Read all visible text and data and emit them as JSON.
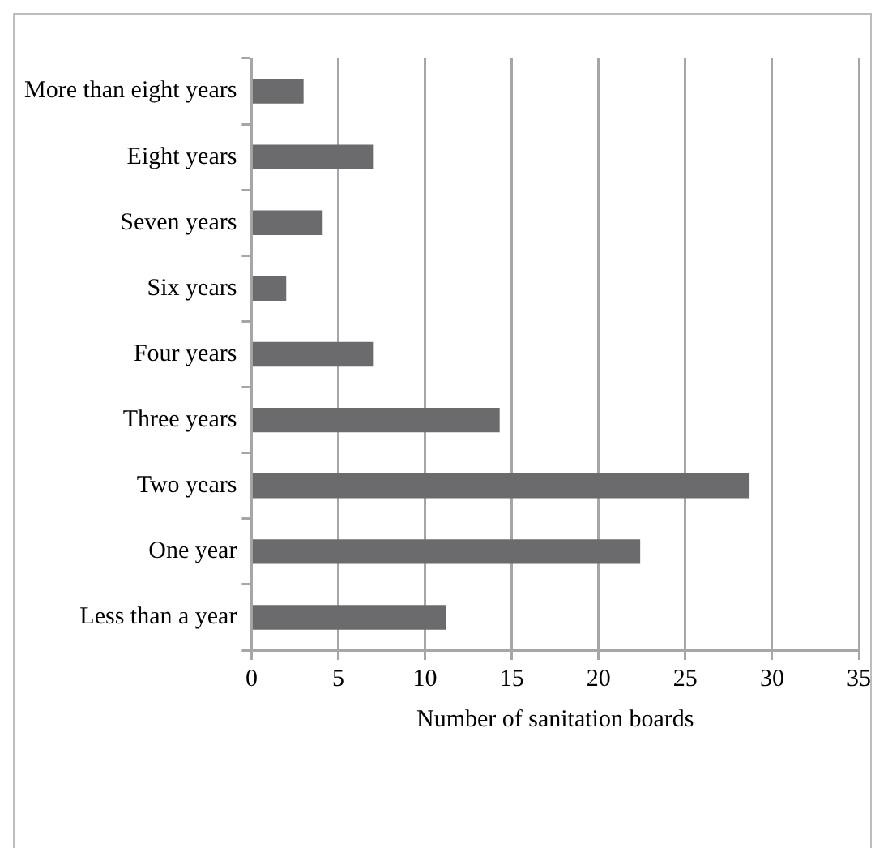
{
  "chart_data": {
    "type": "bar",
    "orientation": "horizontal",
    "xlabel": "Number of sanitation boards",
    "categories": [
      "More than eight years",
      "Eight years",
      "Seven years",
      "Six years",
      "Four years",
      "Three years",
      "Two years",
      "One year",
      "Less than a year"
    ],
    "values": [
      3,
      7,
      4.1,
      2,
      7,
      14.3,
      28.7,
      22.4,
      11.2
    ],
    "color": "#6b6b6e",
    "xlim": [
      0,
      35
    ],
    "xticks": [
      0,
      5,
      10,
      15,
      20,
      25,
      30,
      35
    ],
    "grid": "x",
    "legend": false
  }
}
